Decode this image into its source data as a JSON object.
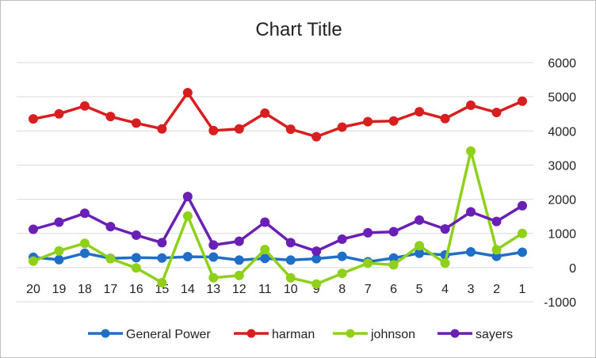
{
  "chart_data": {
    "type": "line",
    "title": "Chart Title",
    "xlabel": "",
    "ylabel": "",
    "categories": [
      "20",
      "19",
      "18",
      "17",
      "16",
      "15",
      "14",
      "13",
      "12",
      "11",
      "10",
      "9",
      "8",
      "7",
      "6",
      "5",
      "4",
      "3",
      "2",
      "1"
    ],
    "ylim": [
      -1000,
      6000
    ],
    "yticks": [
      -1000,
      0,
      1000,
      2000,
      3000,
      4000,
      5000,
      6000
    ],
    "y_axis_position": "right",
    "grid": true,
    "legend_position": "bottom",
    "series": [
      {
        "name": "General Power",
        "color": "#1f6fc8",
        "values": [
          300,
          230,
          420,
          270,
          290,
          280,
          320,
          310,
          220,
          270,
          220,
          260,
          330,
          170,
          280,
          420,
          370,
          460,
          330,
          450
        ]
      },
      {
        "name": "harman",
        "color": "#d81e1e",
        "values": [
          4350,
          4500,
          4730,
          4420,
          4230,
          4060,
          5120,
          4010,
          4060,
          4520,
          4050,
          3830,
          4110,
          4270,
          4290,
          4560,
          4360,
          4750,
          4540,
          4870
        ]
      },
      {
        "name": "johnson",
        "color": "#8fd11a",
        "values": [
          190,
          490,
          710,
          260,
          -10,
          -440,
          1510,
          -300,
          -230,
          530,
          -300,
          -480,
          -170,
          130,
          80,
          640,
          130,
          3410,
          520,
          1000
        ]
      },
      {
        "name": "sayers",
        "color": "#6a1fb5",
        "values": [
          1120,
          1330,
          1590,
          1200,
          950,
          730,
          2080,
          660,
          770,
          1330,
          730,
          480,
          830,
          1020,
          1050,
          1390,
          1130,
          1630,
          1350,
          1810
        ]
      }
    ]
  }
}
